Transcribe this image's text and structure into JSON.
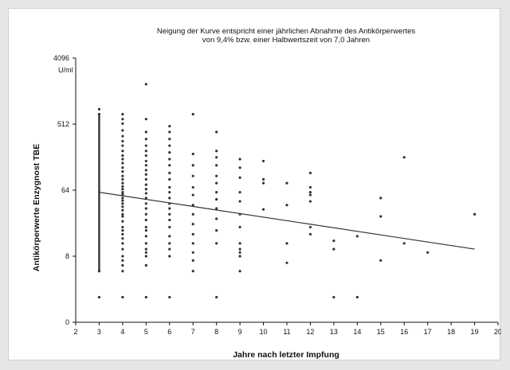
{
  "chart_data": {
    "type": "scatter",
    "title": "Neigung der Kurve entspricht einer jährlichen Abnahme des Antikörperwertes",
    "subtitle": "von 9,4% bzw. einer Halbwertszeit von 7,0 Jahren",
    "xlabel": "Jahre nach letzter Impfung",
    "ylabel": "Antikörperwerte Enzygnost TBE",
    "y_unit": "U/ml",
    "y_scale": "log2",
    "xlim": [
      2,
      20
    ],
    "ylim": [
      1,
      4096
    ],
    "x_ticks": [
      "2",
      "3",
      "4",
      "5",
      "6",
      "7",
      "8",
      "9",
      "10",
      "11",
      "12",
      "13",
      "14",
      "15",
      "16",
      "17",
      "18",
      "19",
      "20"
    ],
    "y_ticks": [
      {
        "value": 1,
        "label": "0"
      },
      {
        "value": 8,
        "label": "8"
      },
      {
        "value": 64,
        "label": "64"
      },
      {
        "value": 512,
        "label": "512"
      },
      {
        "value": 4096,
        "label": "4096"
      }
    ],
    "grid": false,
    "trend_line": {
      "x": [
        3,
        19
      ],
      "y": [
        60,
        10
      ]
    },
    "columns": [
      {
        "x": 3,
        "range": [
          5,
          700
        ],
        "y": [
          2.2,
          5,
          700,
          820
        ]
      },
      {
        "x": 4,
        "y": [
          2.2,
          5,
          6,
          7,
          8,
          10,
          12,
          14,
          16,
          18,
          20,
          24,
          28,
          30,
          34,
          38,
          42,
          46,
          50,
          56,
          60,
          66,
          72,
          80,
          90,
          100,
          115,
          130,
          150,
          170,
          190,
          220,
          260,
          300,
          350,
          420,
          520,
          600,
          700
        ]
      },
      {
        "x": 5,
        "y": [
          2.2,
          6,
          8,
          9,
          10,
          12,
          15,
          18,
          20,
          25,
          30,
          36,
          42,
          50,
          58,
          66,
          76,
          90,
          105,
          120,
          140,
          160,
          190,
          220,
          260,
          320,
          400,
          600,
          1800
        ]
      },
      {
        "x": 6,
        "y": [
          2.2,
          8,
          10,
          12,
          15,
          20,
          25,
          30,
          36,
          42,
          50,
          60,
          70,
          90,
          110,
          140,
          170,
          210,
          260,
          320,
          400,
          480
        ]
      },
      {
        "x": 7,
        "y": [
          5,
          7,
          9,
          12,
          16,
          22,
          30,
          40,
          55,
          70,
          100,
          140,
          200,
          700
        ]
      },
      {
        "x": 8,
        "y": [
          2.2,
          12,
          18,
          26,
          36,
          48,
          60,
          80,
          100,
          140,
          180,
          220,
          400
        ]
      },
      {
        "x": 9,
        "y": [
          5,
          8,
          9,
          10,
          12,
          20,
          30,
          45,
          60,
          95,
          130,
          170
        ]
      },
      {
        "x": 10,
        "y": [
          35,
          80,
          90,
          160
        ]
      },
      {
        "x": 11,
        "y": [
          6.5,
          12,
          40,
          80
        ]
      },
      {
        "x": 12,
        "y": [
          16,
          20,
          45,
          55,
          60,
          70,
          110
        ]
      },
      {
        "x": 13,
        "y": [
          2.2,
          10,
          13
        ]
      },
      {
        "x": 14,
        "y": [
          2.2,
          15
        ]
      },
      {
        "x": 15,
        "y": [
          7,
          28,
          50
        ]
      },
      {
        "x": 16,
        "y": [
          12,
          180
        ]
      },
      {
        "x": 17,
        "y": [
          9
        ]
      },
      {
        "x": 19,
        "y": [
          30
        ]
      }
    ]
  }
}
